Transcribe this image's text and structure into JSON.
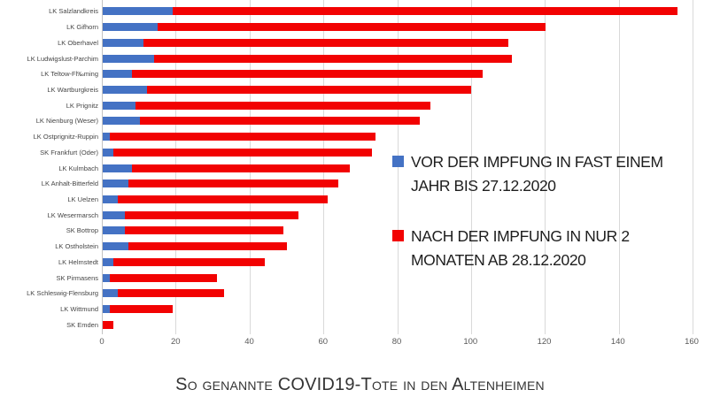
{
  "chart_data": {
    "type": "bar",
    "orientation": "horizontal",
    "stacked": true,
    "title": "So genannte COVID19-Tote in den Altenheimen",
    "categories": [
      "LK Salzlandkreis",
      "LK Gifhorn",
      "LK Oberhavel",
      "LK Ludwigslust-Parchim",
      "LK Teltow-Fl‰ming",
      "LK Wartburgkreis",
      "LK Prignitz",
      "LK Nienburg (Weser)",
      "LK Ostprignitz-Ruppin",
      "SK Frankfurt (Oder)",
      "LK Kulmbach",
      "LK Anhalt-Bitterfeld",
      "LK Uelzen",
      "LK Wesermarsch",
      "SK Bottrop",
      "LK Ostholstein",
      "LK Helmstedt",
      "SK Pirmasens",
      "LK Schleswig-Flensburg",
      "LK Wittmund",
      "SK Emden"
    ],
    "series": [
      {
        "name": "VOR DER IMPFUNG IN FAST EINEM JAHR BIS 27.12.2020",
        "color": "#4472c4",
        "values": [
          19,
          15,
          11,
          14,
          8,
          12,
          9,
          10,
          2,
          3,
          8,
          7,
          4,
          6,
          6,
          7,
          3,
          2,
          4,
          2,
          0
        ]
      },
      {
        "name": "NACH DER IMPFUNG IN NUR 2 MONATEN AB 28.12.2020",
        "color": "#f20202",
        "values": [
          137,
          105,
          99,
          97,
          95,
          88,
          80,
          76,
          72,
          70,
          59,
          57,
          57,
          47,
          43,
          43,
          41,
          29,
          29,
          17,
          3
        ]
      }
    ],
    "totals": [
      156,
      120,
      110,
      111,
      103,
      100,
      89,
      86,
      74,
      73,
      67,
      64,
      61,
      53,
      49,
      50,
      44,
      31,
      33,
      19,
      3
    ],
    "x_ticks": [
      0,
      20,
      40,
      60,
      80,
      100,
      120,
      140,
      160
    ],
    "xlim": [
      0,
      160
    ],
    "grid": true,
    "legend_position": "center-right"
  },
  "colors": {
    "before_blue": "#4472c4",
    "after_red": "#f20202",
    "gridline": "#d9d9d9",
    "background": "#ffffff"
  }
}
